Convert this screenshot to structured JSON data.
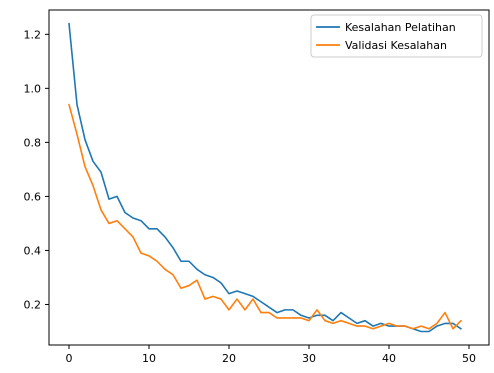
{
  "chart_data": {
    "type": "line",
    "title": "",
    "xlabel": "",
    "ylabel": "",
    "xlim": [
      -2.5,
      52.5
    ],
    "ylim": [
      0.05,
      1.29
    ],
    "xticks": [
      0,
      10,
      20,
      30,
      40,
      50
    ],
    "yticks": [
      0.2,
      0.4,
      0.6,
      0.8,
      1.0,
      1.2
    ],
    "xtick_labels": [
      "0",
      "10",
      "20",
      "30",
      "40",
      "50"
    ],
    "ytick_labels": [
      "0.2",
      "0.4",
      "0.6",
      "0.8",
      "1.0",
      "1.2"
    ],
    "grid": false,
    "legend_position": "top-right",
    "x": [
      0,
      1,
      2,
      3,
      4,
      5,
      6,
      7,
      8,
      9,
      10,
      11,
      12,
      13,
      14,
      15,
      16,
      17,
      18,
      19,
      20,
      21,
      22,
      23,
      24,
      25,
      26,
      27,
      28,
      29,
      30,
      31,
      32,
      33,
      34,
      35,
      36,
      37,
      38,
      39,
      40,
      41,
      42,
      43,
      44,
      45,
      46,
      47,
      48,
      49
    ],
    "series": [
      {
        "name": "Kesalahan Pelatihan",
        "color": "#1f77b4",
        "values": [
          1.24,
          0.94,
          0.81,
          0.73,
          0.69,
          0.59,
          0.6,
          0.54,
          0.52,
          0.51,
          0.48,
          0.48,
          0.45,
          0.41,
          0.36,
          0.36,
          0.33,
          0.31,
          0.3,
          0.28,
          0.24,
          0.25,
          0.24,
          0.23,
          0.21,
          0.19,
          0.17,
          0.18,
          0.18,
          0.16,
          0.15,
          0.16,
          0.16,
          0.14,
          0.17,
          0.15,
          0.13,
          0.14,
          0.12,
          0.13,
          0.12,
          0.12,
          0.12,
          0.11,
          0.1,
          0.1,
          0.12,
          0.13,
          0.13,
          0.11
        ]
      },
      {
        "name": "Validasi Kesalahan",
        "color": "#ff7f0e",
        "values": [
          0.94,
          0.83,
          0.71,
          0.64,
          0.55,
          0.5,
          0.51,
          0.48,
          0.45,
          0.39,
          0.38,
          0.36,
          0.33,
          0.31,
          0.26,
          0.27,
          0.29,
          0.22,
          0.23,
          0.22,
          0.18,
          0.22,
          0.18,
          0.22,
          0.17,
          0.17,
          0.15,
          0.15,
          0.15,
          0.15,
          0.14,
          0.18,
          0.14,
          0.13,
          0.14,
          0.13,
          0.12,
          0.12,
          0.11,
          0.12,
          0.13,
          0.12,
          0.12,
          0.11,
          0.12,
          0.11,
          0.13,
          0.17,
          0.11,
          0.14
        ]
      }
    ]
  }
}
